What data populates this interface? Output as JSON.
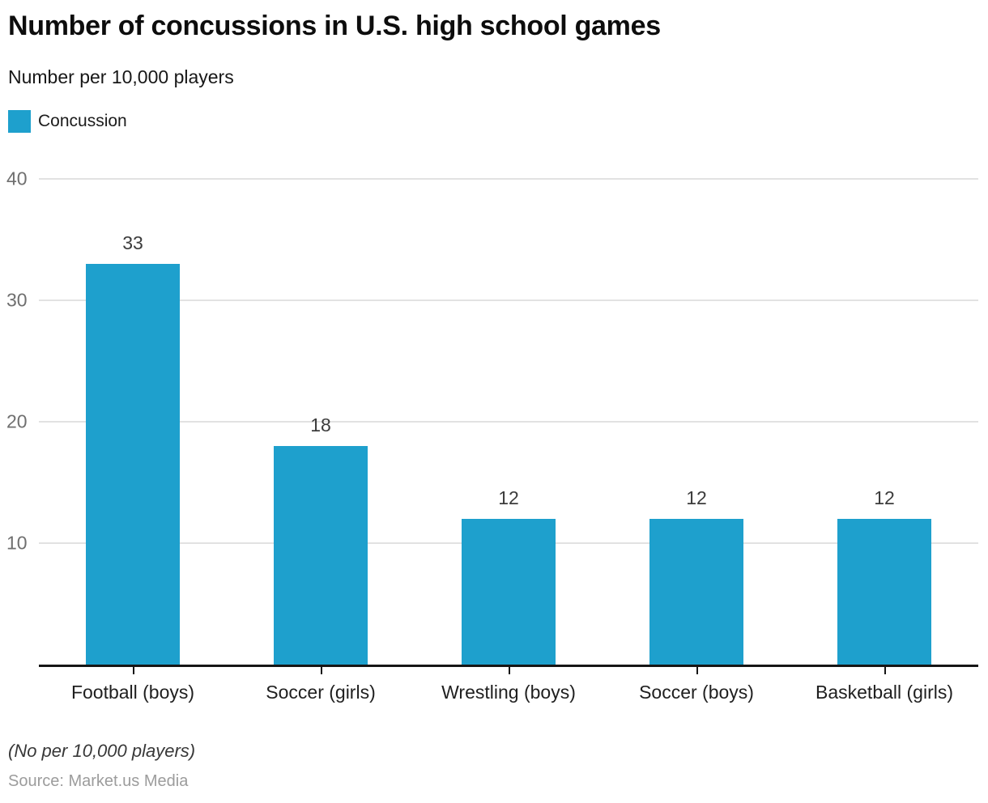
{
  "header": {
    "title": "Number of concussions in U.S. high school games",
    "subtitle": "Number per 10,000 players"
  },
  "legend": {
    "label": "Concussion",
    "color": "#1ea0cd"
  },
  "chart_data": {
    "type": "bar",
    "title": "Number of concussions in U.S. high school games",
    "subtitle": "Number per 10,000 players",
    "categories": [
      "Football (boys)",
      "Soccer (girls)",
      "Wrestling (boys)",
      "Soccer (boys)",
      "Basketball (girls)"
    ],
    "series": [
      {
        "name": "Concussion",
        "color": "#1ea0cd",
        "values": [
          33,
          18,
          12,
          12,
          12
        ]
      }
    ],
    "bar_labels": [
      "33",
      "18",
      "12",
      "12",
      "12"
    ],
    "xlabel": "",
    "ylabel": "Number per 10,000 players",
    "ylim": [
      0,
      40
    ],
    "yticks": [
      10,
      20,
      30,
      40
    ],
    "grid": true,
    "legend_position": "top-left"
  },
  "colors": {
    "bar": "#1ea0cd",
    "gridline": "#e2e2e2",
    "axis_line": "#161616",
    "ytick_text": "#6f6f6f",
    "value_label_text": "#3c3c3c"
  },
  "footer": {
    "note": "(No per 10,000 players)",
    "source": "Source: Market.us Media"
  }
}
